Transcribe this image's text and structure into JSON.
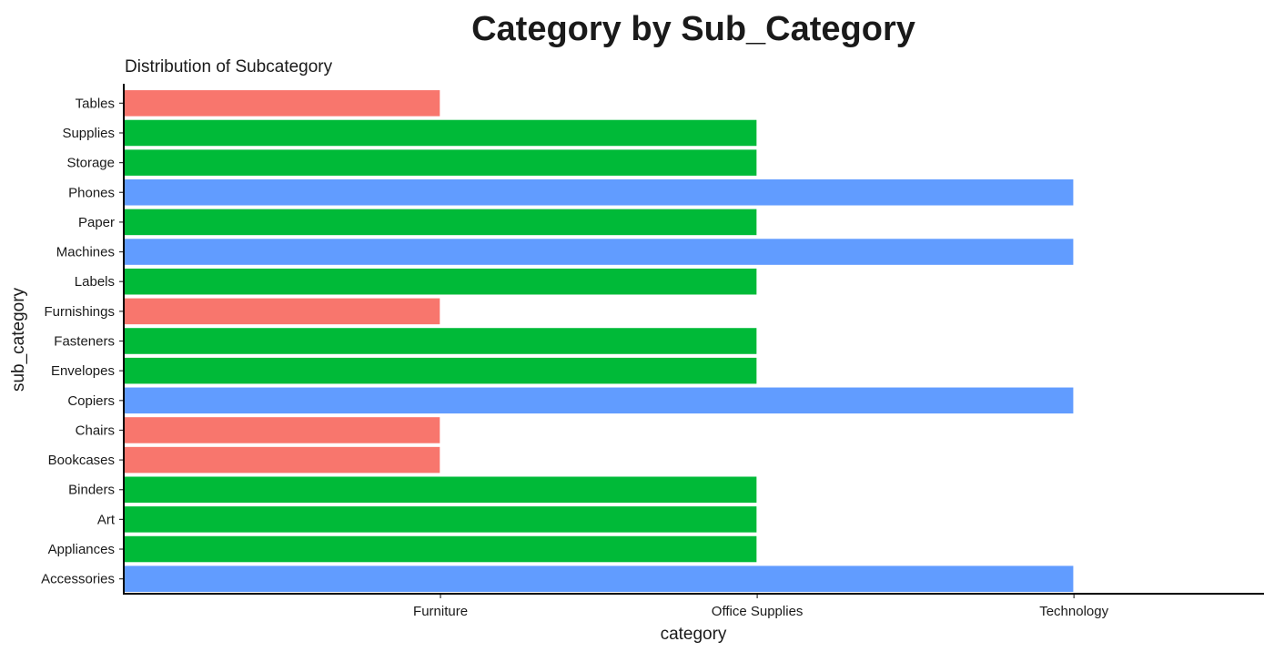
{
  "chart_data": {
    "type": "bar",
    "orientation": "horizontal",
    "title": "Category by Sub_Category",
    "subtitle": "Distribution of Subcategory",
    "xlabel": "category",
    "ylabel": "sub_category",
    "x_categories": [
      "Furniture",
      "Office Supplies",
      "Technology"
    ],
    "y_categories": [
      "Accessories",
      "Appliances",
      "Art",
      "Binders",
      "Bookcases",
      "Chairs",
      "Copiers",
      "Envelopes",
      "Fasteners",
      "Furnishings",
      "Labels",
      "Machines",
      "Paper",
      "Phones",
      "Storage",
      "Supplies",
      "Tables"
    ],
    "bars": [
      {
        "sub_category": "Accessories",
        "category": "Technology"
      },
      {
        "sub_category": "Appliances",
        "category": "Office Supplies"
      },
      {
        "sub_category": "Art",
        "category": "Office Supplies"
      },
      {
        "sub_category": "Binders",
        "category": "Office Supplies"
      },
      {
        "sub_category": "Bookcases",
        "category": "Furniture"
      },
      {
        "sub_category": "Chairs",
        "category": "Furniture"
      },
      {
        "sub_category": "Copiers",
        "category": "Technology"
      },
      {
        "sub_category": "Envelopes",
        "category": "Office Supplies"
      },
      {
        "sub_category": "Fasteners",
        "category": "Office Supplies"
      },
      {
        "sub_category": "Furnishings",
        "category": "Furniture"
      },
      {
        "sub_category": "Labels",
        "category": "Office Supplies"
      },
      {
        "sub_category": "Machines",
        "category": "Technology"
      },
      {
        "sub_category": "Paper",
        "category": "Office Supplies"
      },
      {
        "sub_category": "Phones",
        "category": "Technology"
      },
      {
        "sub_category": "Storage",
        "category": "Office Supplies"
      },
      {
        "sub_category": "Supplies",
        "category": "Office Supplies"
      },
      {
        "sub_category": "Tables",
        "category": "Furniture"
      }
    ],
    "fill_colors": {
      "Furniture": "#F8766D",
      "Office Supplies": "#00BA38",
      "Technology": "#619CFF"
    },
    "grid": false,
    "legend": "none"
  }
}
